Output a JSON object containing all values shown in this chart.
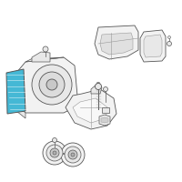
{
  "bg_color": "#ffffff",
  "highlight_color": "#45b8d5",
  "line_color": "#999999",
  "dark_line": "#555555",
  "body_fill": "#f2f2f2",
  "body_fill2": "#e8e8e8",
  "fig_width": 2.0,
  "fig_height": 2.0,
  "dpi": 100
}
